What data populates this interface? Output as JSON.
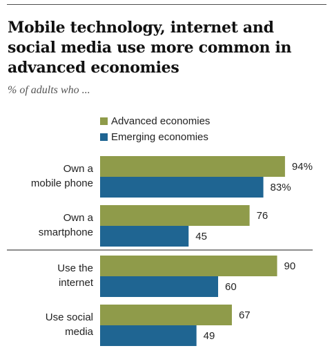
{
  "title": "Mobile technology, internet and social media use more common in advanced economies",
  "subtitle": "% of adults who ...",
  "chart_data": {
    "type": "bar",
    "orientation": "horizontal",
    "categories": [
      [
        "Own a",
        "mobile phone"
      ],
      [
        "Own a",
        "smartphone"
      ],
      [
        "Use the",
        "internet"
      ],
      [
        "Use social",
        "media"
      ]
    ],
    "series": [
      {
        "name": "Advanced economies",
        "color": "#8f9b4a",
        "values": [
          94,
          76,
          90,
          67
        ],
        "labels": [
          "94%",
          "76",
          "90",
          "67"
        ]
      },
      {
        "name": "Emerging economies",
        "color": "#1f6592",
        "values": [
          83,
          45,
          60,
          49
        ],
        "labels": [
          "83%",
          "45",
          "60",
          "49"
        ]
      }
    ],
    "xlim": [
      0,
      100
    ],
    "grid": false,
    "legend": "top-left"
  }
}
